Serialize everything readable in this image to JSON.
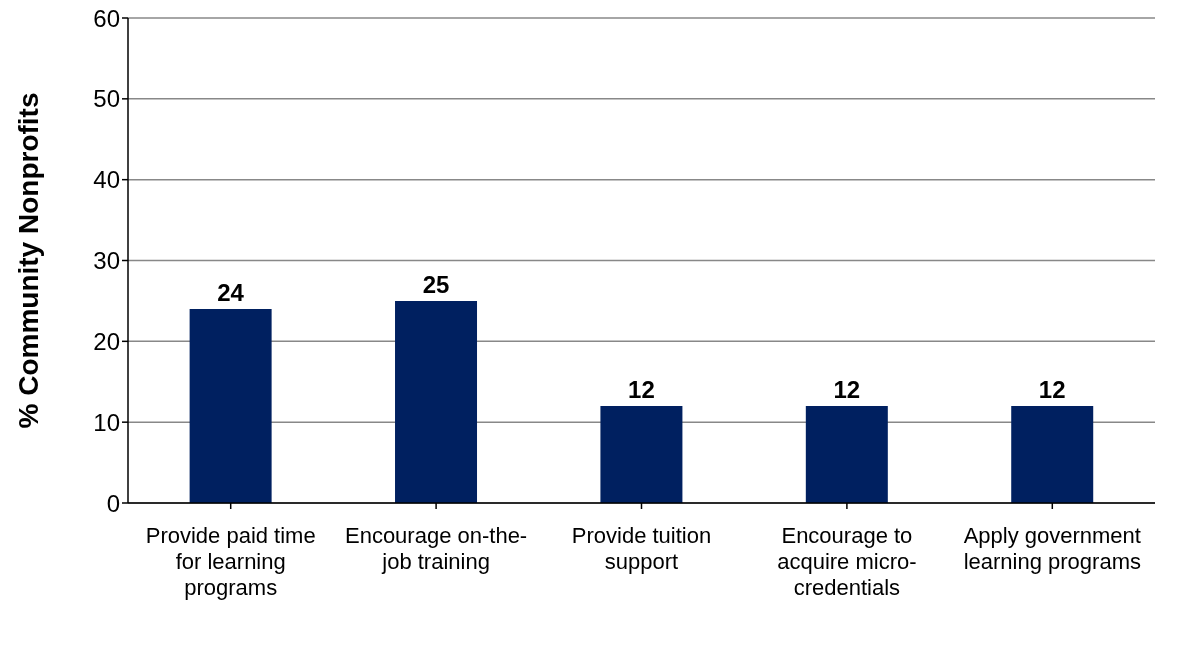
{
  "chart_data": {
    "type": "bar",
    "ylabel": "% Community Nonprofits",
    "categories": [
      "Provide paid time for learning programs",
      "Encourage on-the-job training",
      "Provide tuition support",
      "Encourage to acquire micro-credentials",
      "Apply government learning programs"
    ],
    "values": [
      24,
      25,
      12,
      12,
      12
    ],
    "color": "#002060",
    "ylim": [
      0,
      60
    ],
    "yticks": [
      0,
      10,
      20,
      30,
      40,
      50,
      60
    ],
    "grid": "y",
    "data_labels": true
  }
}
